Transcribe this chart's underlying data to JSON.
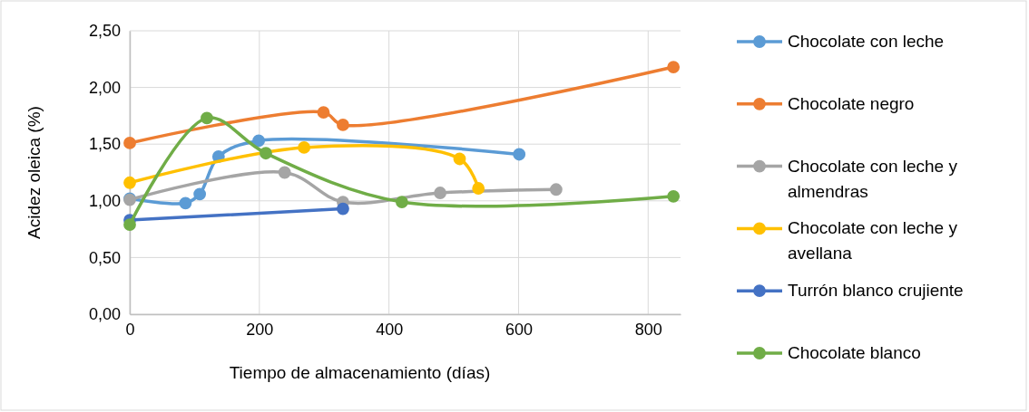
{
  "chart_data": {
    "type": "line",
    "xlabel": "Tiempo de almacenamiento (días)",
    "ylabel": "Acidez oleica (%)",
    "xlim": [
      0,
      850
    ],
    "xticks": [
      0,
      200,
      400,
      600,
      800
    ],
    "ylim": [
      0,
      2.5
    ],
    "yticks": [
      {
        "value": 0,
        "label": "0,00"
      },
      {
        "value": 0.5,
        "label": "0,50"
      },
      {
        "value": 1,
        "label": "1,00"
      },
      {
        "value": 1.5,
        "label": "1,50"
      },
      {
        "value": 2,
        "label": "2,00"
      },
      {
        "value": 2.5,
        "label": "2,50"
      }
    ],
    "grid": true,
    "legend": "right",
    "marker": "circle",
    "line_style": "solid",
    "series": [
      {
        "name": "Chocolate con leche",
        "color": "#5b9bd5",
        "x": [
          0,
          86,
          108,
          137,
          199,
          601
        ],
        "values": [
          1.02,
          0.98,
          1.06,
          1.39,
          1.53,
          1.41
        ]
      },
      {
        "name": "Chocolate negro",
        "color": "#ed7d31",
        "x": [
          0,
          299,
          329,
          839
        ],
        "values": [
          1.51,
          1.78,
          1.67,
          2.18
        ]
      },
      {
        "name": "Chocolate con leche y almendras",
        "color": "#a5a5a5",
        "x": [
          0,
          239,
          329,
          479,
          658
        ],
        "values": [
          1.01,
          1.25,
          0.99,
          1.07,
          1.1
        ]
      },
      {
        "name": "Chocolate con leche y avellana",
        "color": "#ffc000",
        "x": [
          0,
          269,
          509,
          538
        ],
        "values": [
          1.16,
          1.47,
          1.37,
          1.11
        ]
      },
      {
        "name": "Turrón blanco crujiente",
        "color": "#4472c4",
        "x": [
          0,
          329
        ],
        "values": [
          0.83,
          0.93
        ]
      },
      {
        "name": "Chocolate blanco",
        "color": "#70ad47",
        "x": [
          0,
          119,
          210,
          420,
          839
        ],
        "values": [
          0.79,
          1.73,
          1.42,
          0.99,
          1.04
        ]
      }
    ]
  }
}
